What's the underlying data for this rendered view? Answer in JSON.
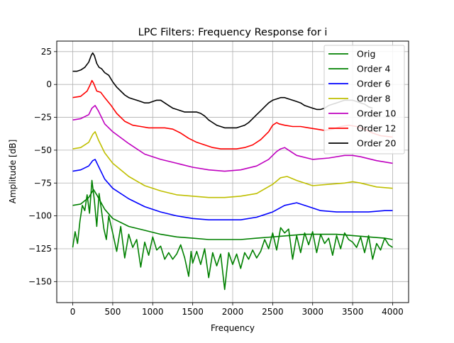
{
  "chart_data": {
    "type": "line",
    "title": "LPC Filters: Frequency Response for i",
    "xlabel": "Frequency",
    "ylabel": "Amplitude [dB]",
    "xlim": [
      -200,
      4200
    ],
    "ylim": [
      -166,
      33
    ],
    "xticks": [
      0,
      500,
      1000,
      1500,
      2000,
      2500,
      3000,
      3500,
      4000
    ],
    "yticks": [
      25,
      0,
      -25,
      -50,
      -75,
      -100,
      -125,
      -150
    ],
    "grid": true,
    "legend_position": "top-right",
    "series": [
      {
        "name": "Orig",
        "color": "#008000",
        "x": [
          0,
          30,
          60,
          90,
          120,
          150,
          180,
          210,
          240,
          270,
          300,
          330,
          360,
          390,
          420,
          450,
          500,
          550,
          600,
          650,
          700,
          750,
          800,
          850,
          900,
          950,
          1000,
          1050,
          1100,
          1150,
          1200,
          1250,
          1300,
          1350,
          1400,
          1450,
          1480,
          1500,
          1550,
          1600,
          1650,
          1700,
          1750,
          1800,
          1850,
          1900,
          1950,
          2000,
          2050,
          2100,
          2150,
          2200,
          2250,
          2300,
          2350,
          2400,
          2450,
          2500,
          2550,
          2600,
          2650,
          2700,
          2750,
          2800,
          2850,
          2900,
          2950,
          3000,
          3050,
          3100,
          3150,
          3200,
          3250,
          3300,
          3350,
          3400,
          3450,
          3500,
          3550,
          3600,
          3650,
          3700,
          3750,
          3800,
          3850,
          3900,
          3950,
          4000
        ],
        "y": [
          -124,
          -112,
          -121,
          -104,
          -92,
          -96,
          -84,
          -98,
          -73,
          -88,
          -108,
          -83,
          -96,
          -110,
          -118,
          -100,
          -113,
          -127,
          -108,
          -132,
          -114,
          -124,
          -118,
          -139,
          -120,
          -130,
          -116,
          -126,
          -123,
          -133,
          -128,
          -133,
          -129,
          -122,
          -132,
          -146,
          -127,
          -136,
          -127,
          -137,
          -125,
          -147,
          -128,
          -138,
          -129,
          -156,
          -128,
          -137,
          -129,
          -140,
          -128,
          -133,
          -126,
          -132,
          -127,
          -118,
          -125,
          -113,
          -126,
          -109,
          -113,
          -110,
          -133,
          -115,
          -128,
          -113,
          -122,
          -112,
          -128,
          -114,
          -121,
          -117,
          -130,
          -115,
          -125,
          -113,
          -118,
          -120,
          -124,
          -116,
          -128,
          -115,
          -133,
          -121,
          -126,
          -117,
          -122,
          -124
        ]
      },
      {
        "name": "Order 4",
        "color": "#008000",
        "x": [
          0,
          100,
          200,
          260,
          300,
          400,
          500,
          700,
          900,
          1100,
          1300,
          1500,
          1700,
          1900,
          2100,
          2300,
          2500,
          2700,
          2900,
          3100,
          3300,
          3500,
          3700,
          3900,
          4000
        ],
        "y": [
          -92,
          -91,
          -86,
          -80,
          -84,
          -95,
          -102,
          -108,
          -111,
          -114,
          -116,
          -117,
          -118,
          -118,
          -118,
          -117,
          -116,
          -115,
          -114,
          -114,
          -114,
          -115,
          -116,
          -117,
          -118
        ]
      },
      {
        "name": "Order 6",
        "color": "#0000ff",
        "x": [
          0,
          100,
          200,
          250,
          280,
          320,
          400,
          500,
          700,
          900,
          1100,
          1300,
          1500,
          1700,
          1900,
          2100,
          2300,
          2500,
          2650,
          2800,
          2950,
          3100,
          3300,
          3500,
          3700,
          3900,
          4000
        ],
        "y": [
          -66,
          -65,
          -62,
          -58,
          -57,
          -62,
          -72,
          -79,
          -87,
          -93,
          -97,
          -100,
          -102,
          -103,
          -103,
          -103,
          -101,
          -97,
          -92,
          -90,
          -93,
          -96,
          -97,
          -97,
          -97,
          -96,
          -96
        ]
      },
      {
        "name": "Order 8",
        "color": "#bfbf00",
        "x": [
          0,
          100,
          200,
          250,
          280,
          320,
          400,
          500,
          700,
          900,
          1100,
          1300,
          1500,
          1700,
          1900,
          2100,
          2300,
          2500,
          2600,
          2680,
          2800,
          3000,
          3200,
          3400,
          3500,
          3600,
          3800,
          4000
        ],
        "y": [
          -49,
          -48,
          -44,
          -38,
          -36,
          -42,
          -52,
          -60,
          -70,
          -77,
          -81,
          -84,
          -85,
          -86,
          -86,
          -85,
          -83,
          -76,
          -71,
          -70,
          -73,
          -77,
          -76,
          -75,
          -74,
          -75,
          -78,
          -79
        ]
      },
      {
        "name": "Order 10",
        "color": "#bf00bf",
        "x": [
          0,
          100,
          200,
          240,
          280,
          320,
          400,
          500,
          700,
          900,
          1100,
          1300,
          1500,
          1700,
          1900,
          2100,
          2300,
          2450,
          2550,
          2600,
          2650,
          2700,
          2800,
          3000,
          3200,
          3400,
          3500,
          3600,
          3800,
          4000
        ],
        "y": [
          -27,
          -26,
          -23,
          -18,
          -16,
          -20,
          -30,
          -36,
          -45,
          -53,
          -57,
          -60,
          -63,
          -65,
          -66,
          -65,
          -62,
          -57,
          -51,
          -49,
          -48,
          -50,
          -54,
          -57,
          -56,
          -54,
          -54,
          -55,
          -58,
          -60
        ]
      },
      {
        "name": "Order 12",
        "color": "#ff0000",
        "x": [
          0,
          100,
          180,
          220,
          240,
          260,
          300,
          350,
          400,
          480,
          550,
          650,
          750,
          850,
          950,
          1050,
          1150,
          1250,
          1350,
          1450,
          1550,
          1650,
          1750,
          1850,
          1950,
          2050,
          2150,
          2250,
          2350,
          2450,
          2500,
          2550,
          2580,
          2650,
          2750,
          2850,
          2950,
          3050,
          3150,
          3250,
          3350,
          3450,
          3550,
          3650,
          3750,
          3850,
          4000
        ],
        "y": [
          -10,
          -9,
          -5,
          0,
          3,
          1,
          -5,
          -6,
          -10,
          -16,
          -22,
          -28,
          -31,
          -32,
          -33,
          -33,
          -33,
          -34,
          -37,
          -41,
          -44,
          -46,
          -48,
          -49,
          -49,
          -49,
          -48,
          -46,
          -42,
          -36,
          -31,
          -29,
          -30,
          -31,
          -32,
          -32,
          -33,
          -34,
          -35,
          -34,
          -32,
          -31,
          -32,
          -34,
          -37,
          -39,
          -40
        ]
      },
      {
        "name": "Order 20",
        "color": "#000000",
        "x": [
          0,
          50,
          100,
          150,
          200,
          230,
          250,
          270,
          300,
          330,
          360,
          400,
          450,
          500,
          550,
          600,
          650,
          700,
          750,
          800,
          850,
          900,
          950,
          1000,
          1050,
          1100,
          1150,
          1200,
          1250,
          1300,
          1350,
          1400,
          1450,
          1500,
          1550,
          1600,
          1650,
          1700,
          1750,
          1800,
          1850,
          1900,
          1950,
          2000,
          2050,
          2100,
          2150,
          2200,
          2250,
          2300,
          2350,
          2400,
          2450,
          2500,
          2550,
          2600,
          2650,
          2700,
          2750,
          2800,
          2850,
          2900,
          2950,
          3000,
          3050,
          3100,
          3150,
          3200,
          3250,
          3300,
          3350,
          3400,
          3450,
          3500,
          3550,
          3600,
          3650,
          3700,
          3750
        ],
        "y": [
          10,
          10,
          11,
          13,
          17,
          22,
          24,
          22,
          16,
          13,
          12,
          9,
          7,
          2,
          -2,
          -5,
          -8,
          -10,
          -11,
          -12,
          -13,
          -14,
          -14,
          -13,
          -12,
          -12,
          -14,
          -16,
          -18,
          -19,
          -20,
          -21,
          -21,
          -21,
          -21,
          -22,
          -24,
          -27,
          -29,
          -31,
          -32,
          -33,
          -33,
          -33,
          -33,
          -32,
          -31,
          -29,
          -26,
          -23,
          -20,
          -17,
          -14,
          -12,
          -11,
          -10,
          -10,
          -11,
          -12,
          -13,
          -14,
          -16,
          -17,
          -18,
          -19,
          -19,
          -18,
          -16,
          -15,
          -14,
          -13,
          -12,
          -12,
          -12,
          -13,
          -14,
          -15,
          -17,
          -18
        ]
      }
    ]
  }
}
